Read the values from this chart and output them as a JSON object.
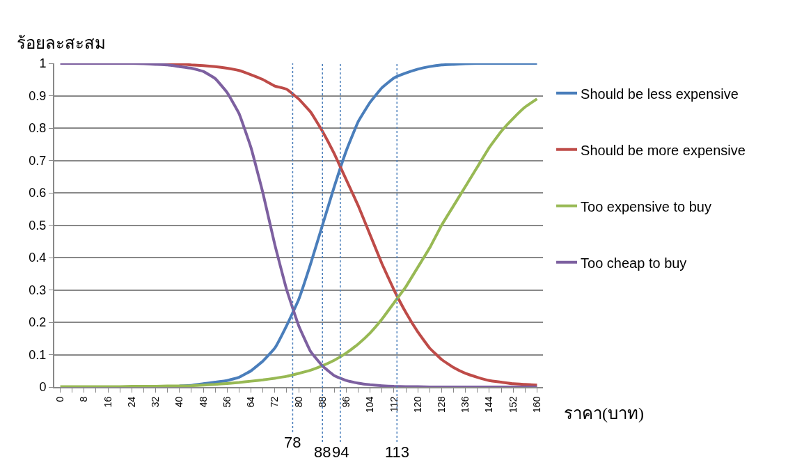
{
  "chart_data": {
    "type": "line",
    "ylabel": "ร้อยละสะสม",
    "xlabel": "ราคา(บาท)",
    "x": [
      0,
      4,
      8,
      12,
      16,
      20,
      24,
      28,
      32,
      36,
      40,
      44,
      48,
      52,
      56,
      60,
      64,
      68,
      72,
      76,
      80,
      84,
      88,
      92,
      96,
      100,
      104,
      108,
      112,
      116,
      120,
      124,
      128,
      132,
      136,
      140,
      144,
      148,
      152,
      156,
      160
    ],
    "series": [
      {
        "name": "Should be less expensive",
        "color": "#4a7ebb",
        "values": [
          null,
          null,
          null,
          null,
          null,
          null,
          null,
          null,
          null,
          null,
          0.003,
          0.005,
          0.01,
          0.015,
          0.02,
          0.03,
          0.05,
          0.08,
          0.12,
          0.19,
          0.27,
          0.38,
          0.5,
          0.62,
          0.73,
          0.82,
          0.88,
          0.925,
          0.955,
          0.97,
          0.982,
          0.99,
          0.995,
          0.997,
          0.999,
          1,
          1,
          1,
          1,
          1,
          1
        ]
      },
      {
        "name": "Should be more expensive",
        "color": "#be4b48",
        "values": [
          null,
          null,
          null,
          null,
          null,
          null,
          null,
          null,
          1,
          0.999,
          0.998,
          0.995,
          0.993,
          0.99,
          0.985,
          0.978,
          0.965,
          0.95,
          0.93,
          0.92,
          0.89,
          0.85,
          0.79,
          0.72,
          0.64,
          0.56,
          0.47,
          0.38,
          0.3,
          0.23,
          0.17,
          0.12,
          0.085,
          0.06,
          0.042,
          0.03,
          0.02,
          0.015,
          0.01,
          0.008,
          0.006
        ]
      },
      {
        "name": "Too expensive to buy",
        "color": "#98b954",
        "values": [
          0.001,
          0.001,
          0.001,
          0.001,
          0.001,
          0.001,
          0.002,
          0.002,
          0.002,
          0.003,
          0.003,
          0.004,
          0.006,
          0.008,
          0.011,
          0.014,
          0.018,
          0.022,
          0.027,
          0.033,
          0.042,
          0.052,
          0.066,
          0.083,
          0.105,
          0.133,
          0.167,
          0.21,
          0.26,
          0.31,
          0.37,
          0.43,
          0.5,
          0.56,
          0.62,
          0.68,
          0.74,
          0.79,
          0.83,
          0.865,
          0.89
        ]
      },
      {
        "name": "Too cheap to buy",
        "color": "#7d60a0",
        "values": [
          1,
          1,
          1,
          1,
          1,
          1,
          1,
          0.999,
          0.997,
          0.995,
          0.99,
          0.985,
          0.975,
          0.953,
          0.91,
          0.845,
          0.74,
          0.6,
          0.44,
          0.3,
          0.19,
          0.11,
          0.065,
          0.035,
          0.02,
          0.012,
          0.007,
          0.004,
          0.002,
          0.001,
          0.001,
          0,
          0,
          0,
          0,
          0,
          0,
          0,
          0,
          0,
          0
        ]
      }
    ],
    "xlim": [
      -2,
      162
    ],
    "xticks": [
      0,
      {
        "value": 4,
        "label": null
      },
      8,
      {
        "value": 12,
        "label": null
      },
      16,
      {
        "value": 20,
        "label": null
      },
      24,
      {
        "value": 28,
        "label": null
      },
      32,
      {
        "value": 36,
        "label": null
      },
      40,
      {
        "value": 44,
        "label": null
      },
      48,
      {
        "value": 52,
        "label": null
      },
      56,
      {
        "value": 60,
        "label": null
      },
      64,
      {
        "value": 68,
        "label": null
      },
      72,
      {
        "value": 76,
        "label": null
      },
      80,
      {
        "value": 84,
        "label": null
      },
      88,
      {
        "value": 92,
        "label": null
      },
      96,
      {
        "value": 100,
        "label": null
      },
      104,
      {
        "value": 108,
        "label": null
      },
      112,
      {
        "value": 116,
        "label": null
      },
      120,
      {
        "value": 124,
        "label": null
      },
      128,
      {
        "value": 132,
        "label": null
      },
      136,
      {
        "value": 140,
        "label": null
      },
      144,
      {
        "value": 148,
        "label": null
      },
      152,
      {
        "value": 156,
        "label": null
      },
      160
    ],
    "ylim": [
      0,
      1
    ],
    "yticks": [
      0,
      0.1,
      0.2,
      0.3,
      0.4,
      0.5,
      0.6,
      0.7,
      0.8,
      0.9,
      1
    ],
    "ref_lines": [
      {
        "axis": "x",
        "value": 78,
        "label": "78",
        "color": "#4a7ebb",
        "line_style": "dotted"
      },
      {
        "axis": "x",
        "value": 88,
        "label": "88",
        "color": "#4a7ebb",
        "line_style": "dotted"
      },
      {
        "axis": "x",
        "value": 94,
        "label": "94",
        "color": "#4a7ebb",
        "line_style": "dotted"
      },
      {
        "axis": "x",
        "value": 113,
        "label": "113",
        "color": "#4a7ebb",
        "line_style": "dotted"
      }
    ],
    "grid": "y",
    "legend": "right",
    "marker": "none",
    "line_style": "solid"
  }
}
